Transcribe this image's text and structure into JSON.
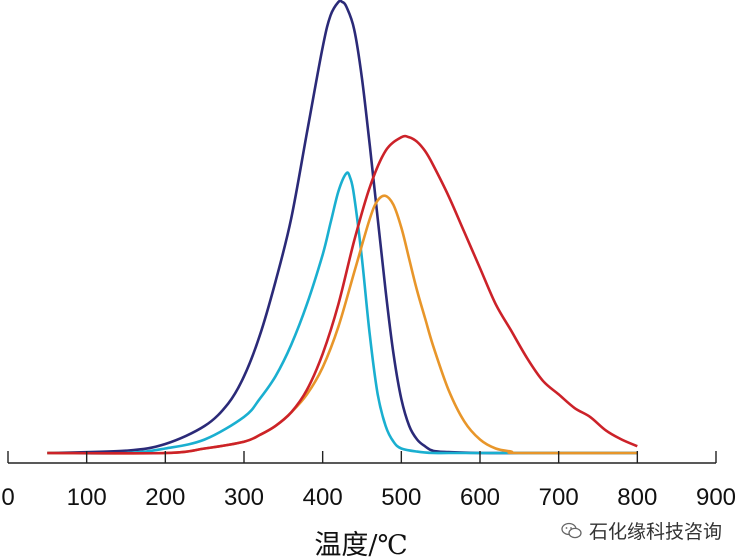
{
  "chart_data": {
    "type": "line",
    "title": "",
    "xlabel": "温度/℃",
    "ylabel": "",
    "xlim": [
      0,
      900
    ],
    "ylim": [
      0,
      1
    ],
    "xticks": [
      0,
      100,
      200,
      300,
      400,
      500,
      600,
      700,
      800,
      900
    ],
    "grid": false,
    "legend": "none",
    "series": [
      {
        "color": "#2b2a78",
        "x": [
          50,
          150,
          200,
          250,
          280,
          300,
          320,
          340,
          360,
          380,
          400,
          410,
          420,
          425,
          430,
          440,
          450,
          460,
          470,
          480,
          490,
          500,
          510,
          520,
          530,
          540,
          560,
          600,
          650,
          700,
          800
        ],
        "y": [
          0.0,
          0.005,
          0.02,
          0.06,
          0.11,
          0.17,
          0.26,
          0.38,
          0.52,
          0.71,
          0.9,
          0.97,
          1.0,
          1.0,
          0.99,
          0.94,
          0.83,
          0.68,
          0.52,
          0.36,
          0.22,
          0.12,
          0.06,
          0.03,
          0.015,
          0.005,
          0.002,
          0.0,
          0.0,
          0.0,
          0.0
        ]
      },
      {
        "color": "#1aafd0",
        "x": [
          50,
          150,
          200,
          250,
          300,
          320,
          340,
          360,
          380,
          400,
          410,
          420,
          430,
          435,
          440,
          450,
          460,
          470,
          480,
          490,
          500,
          520,
          540,
          560,
          600,
          650,
          800
        ],
        "y": [
          0.0,
          0.0,
          0.01,
          0.03,
          0.08,
          0.12,
          0.17,
          0.24,
          0.33,
          0.44,
          0.51,
          0.58,
          0.62,
          0.61,
          0.57,
          0.43,
          0.26,
          0.13,
          0.06,
          0.025,
          0.01,
          0.003,
          0.0,
          0.0,
          0.0,
          0.0,
          0.0
        ]
      },
      {
        "color": "#e8962a",
        "x": [
          50,
          200,
          250,
          300,
          320,
          340,
          360,
          380,
          400,
          420,
          440,
          460,
          470,
          480,
          490,
          500,
          510,
          520,
          530,
          540,
          560,
          580,
          600,
          620,
          640,
          650,
          800
        ],
        "y": [
          0.0,
          0.0,
          0.01,
          0.025,
          0.04,
          0.06,
          0.09,
          0.13,
          0.19,
          0.28,
          0.4,
          0.52,
          0.56,
          0.57,
          0.55,
          0.5,
          0.43,
          0.36,
          0.3,
          0.24,
          0.14,
          0.07,
          0.03,
          0.01,
          0.003,
          0.0,
          0.0
        ]
      },
      {
        "color": "#cc2229",
        "x": [
          50,
          200,
          250,
          300,
          320,
          340,
          360,
          380,
          400,
          420,
          440,
          460,
          480,
          500,
          510,
          520,
          530,
          540,
          560,
          580,
          600,
          620,
          640,
          660,
          680,
          700,
          720,
          740,
          760,
          780,
          800
        ],
        "y": [
          0.0,
          0.0,
          0.01,
          0.025,
          0.04,
          0.06,
          0.09,
          0.14,
          0.22,
          0.33,
          0.47,
          0.59,
          0.67,
          0.7,
          0.7,
          0.69,
          0.67,
          0.64,
          0.57,
          0.49,
          0.41,
          0.33,
          0.27,
          0.21,
          0.16,
          0.13,
          0.1,
          0.08,
          0.05,
          0.03,
          0.015
        ]
      }
    ]
  },
  "watermark": {
    "text": "石化缘科技咨询",
    "icon": "wechat-icon"
  }
}
